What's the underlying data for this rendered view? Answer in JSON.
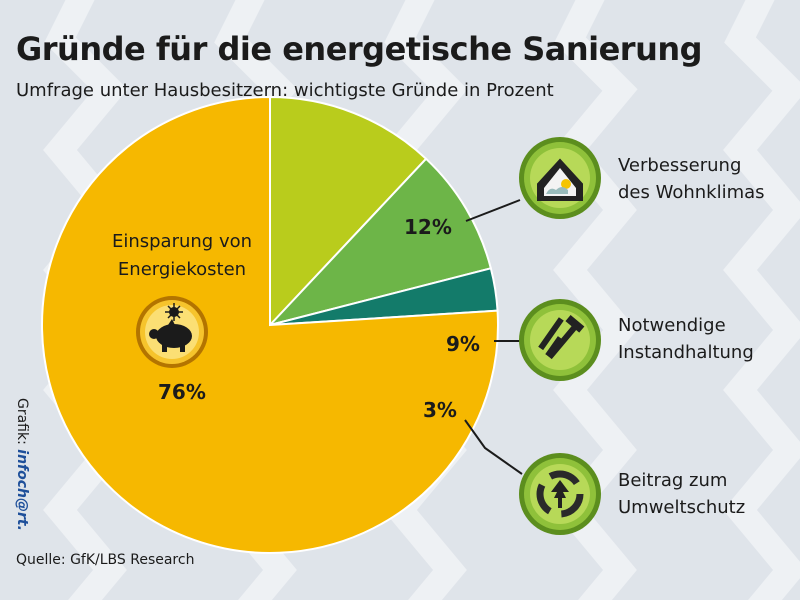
{
  "header": {
    "title": "Gründe für die energetische Sanierung",
    "subtitle": "Umfrage unter Hausbesitzern: wichtigste Gründe in Prozent"
  },
  "chart_data": {
    "type": "pie",
    "categories": [
      "Einsparung von Energiekosten",
      "Verbesserung des Wohnklimas",
      "Notwendige Instandhaltung",
      "Beitrag zum Umweltschutz"
    ],
    "values": [
      76,
      12,
      9,
      3
    ],
    "value_labels": [
      "76%",
      "12%",
      "9%",
      "3%"
    ],
    "colors": [
      "#f6b800",
      "#b9cc1c",
      "#6db548",
      "#137b6a"
    ],
    "start_direction": "top, clockwise from Verbesserung des Wohnklimas"
  },
  "labels": {
    "main_line1": "Einsparung von",
    "main_line2": "Energiekosten",
    "main_value": "76%",
    "wohnklima_value": "12%",
    "instand_value": "9%",
    "umwelt_value": "3%"
  },
  "legend": {
    "wohnklima_line1": "Verbesserung",
    "wohnklima_line2": "des Wohnklimas",
    "instand_line1": "Notwendige",
    "instand_line2": "Instandhaltung",
    "umwelt_line1": "Beitrag zum",
    "umwelt_line2": "Umweltschutz"
  },
  "icons": {
    "main": "piggy-bank-icon",
    "wohnklima": "house-sun-icon",
    "instand": "tools-icon",
    "umwelt": "recycle-tree-icon"
  },
  "footer": {
    "source": "Quelle: GfK/LBS Research",
    "credit_prefix": "Grafik: ",
    "credit_brand": "infoch@rt."
  }
}
